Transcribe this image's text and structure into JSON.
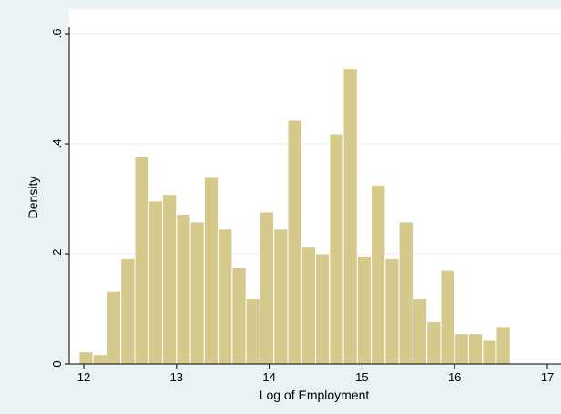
{
  "chart_data": {
    "type": "bar",
    "xlabel": "Log of Employment",
    "ylabel": "Density",
    "xlim": [
      11.85,
      17.0
    ],
    "ylim": [
      0,
      0.6
    ],
    "x_ticks": [
      12,
      13,
      14,
      15,
      16,
      17
    ],
    "y_ticks": [
      0,
      0.2,
      0.4,
      0.6
    ],
    "x_tick_labels": [
      "12",
      "13",
      "14",
      "15",
      "16",
      "17"
    ],
    "y_tick_labels": [
      "0",
      ".2",
      ".4",
      ".6"
    ],
    "grid": "horizontal",
    "bar_color": "#d6c98c",
    "bar_edge_color": "#ffffff",
    "bins": [
      {
        "x0": 11.95,
        "x1": 12.1,
        "value": 0.022
      },
      {
        "x0": 12.1,
        "x1": 12.25,
        "value": 0.017
      },
      {
        "x0": 12.25,
        "x1": 12.4,
        "value": 0.132
      },
      {
        "x0": 12.4,
        "x1": 12.55,
        "value": 0.191
      },
      {
        "x0": 12.55,
        "x1": 12.7,
        "value": 0.376
      },
      {
        "x0": 12.7,
        "x1": 12.85,
        "value": 0.296
      },
      {
        "x0": 12.85,
        "x1": 13.0,
        "value": 0.308
      },
      {
        "x0": 13.0,
        "x1": 13.15,
        "value": 0.272
      },
      {
        "x0": 13.15,
        "x1": 13.3,
        "value": 0.258
      },
      {
        "x0": 13.3,
        "x1": 13.45,
        "value": 0.339
      },
      {
        "x0": 13.45,
        "x1": 13.6,
        "value": 0.245
      },
      {
        "x0": 13.6,
        "x1": 13.75,
        "value": 0.175
      },
      {
        "x0": 13.75,
        "x1": 13.9,
        "value": 0.118
      },
      {
        "x0": 13.9,
        "x1": 14.05,
        "value": 0.276
      },
      {
        "x0": 14.05,
        "x1": 14.2,
        "value": 0.245
      },
      {
        "x0": 14.2,
        "x1": 14.35,
        "value": 0.443
      },
      {
        "x0": 14.35,
        "x1": 14.5,
        "value": 0.212
      },
      {
        "x0": 14.5,
        "x1": 14.65,
        "value": 0.2
      },
      {
        "x0": 14.65,
        "x1": 14.8,
        "value": 0.418
      },
      {
        "x0": 14.8,
        "x1": 14.95,
        "value": 0.536
      },
      {
        "x0": 14.95,
        "x1": 15.1,
        "value": 0.196
      },
      {
        "x0": 15.1,
        "x1": 15.25,
        "value": 0.325
      },
      {
        "x0": 15.25,
        "x1": 15.4,
        "value": 0.191
      },
      {
        "x0": 15.4,
        "x1": 15.55,
        "value": 0.258
      },
      {
        "x0": 15.55,
        "x1": 15.7,
        "value": 0.118
      },
      {
        "x0": 15.7,
        "x1": 15.85,
        "value": 0.077
      },
      {
        "x0": 15.85,
        "x1": 16.0,
        "value": 0.17
      },
      {
        "x0": 16.0,
        "x1": 16.15,
        "value": 0.055
      },
      {
        "x0": 16.15,
        "x1": 16.3,
        "value": 0.055
      },
      {
        "x0": 16.3,
        "x1": 16.45,
        "value": 0.043
      },
      {
        "x0": 16.45,
        "x1": 16.6,
        "value": 0.068
      }
    ]
  }
}
